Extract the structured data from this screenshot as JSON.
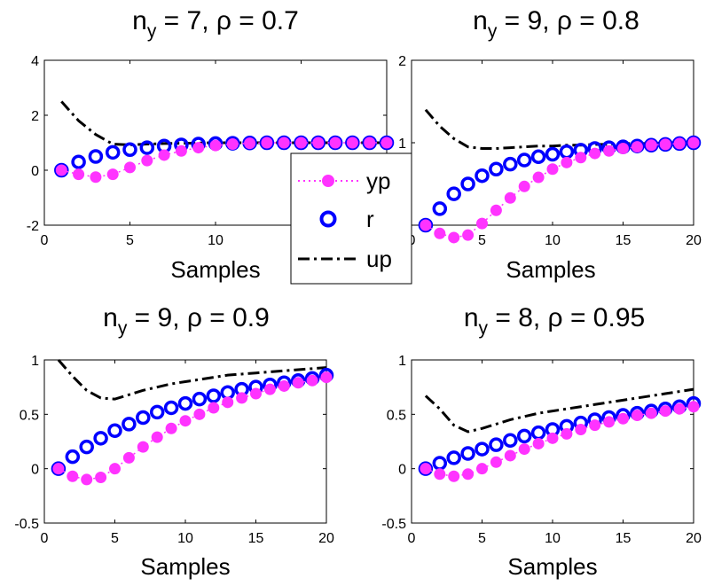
{
  "chart_data": [
    {
      "type": "line",
      "title": {
        "symbol": "n",
        "subscript": "y",
        "rest": " = 7, ρ = 0.7"
      },
      "xlabel": "Samples",
      "xlim": [
        0,
        20
      ],
      "ylim": [
        -2,
        4
      ],
      "xticks": [
        "0",
        "5",
        "10",
        "15",
        "20"
      ],
      "yticks": [
        "-2",
        "0",
        "2",
        "4"
      ],
      "x": [
        1,
        2,
        3,
        4,
        5,
        6,
        7,
        8,
        9,
        10,
        11,
        12,
        13,
        14,
        15,
        16,
        17,
        18,
        19,
        20
      ],
      "series": [
        {
          "name": "yp",
          "values": [
            0,
            -0.15,
            -0.25,
            -0.15,
            0.1,
            0.35,
            0.55,
            0.7,
            0.82,
            0.9,
            0.95,
            0.98,
            1.0,
            1.0,
            1.0,
            1.0,
            1.0,
            1.0,
            1.0,
            1.0
          ]
        },
        {
          "name": "r",
          "values": [
            0,
            0.3,
            0.5,
            0.65,
            0.75,
            0.82,
            0.88,
            0.92,
            0.95,
            0.97,
            0.98,
            0.99,
            1.0,
            1.0,
            1.0,
            1.0,
            1.0,
            1.0,
            1.0,
            1.0
          ]
        },
        {
          "name": "up",
          "values": [
            2.5,
            1.8,
            1.3,
            0.95,
            0.92,
            0.95,
            0.97,
            0.98,
            0.99,
            1.0,
            1.0,
            1.0,
            1.0,
            1.0,
            1.0,
            1.0,
            1.0,
            1.0,
            1.0,
            1.0
          ]
        }
      ]
    },
    {
      "type": "line",
      "title": {
        "symbol": "n",
        "subscript": "y",
        "rest": " = 9, ρ = 0.8"
      },
      "xlabel": "Samples",
      "xlim": [
        0,
        20
      ],
      "ylim": [
        0,
        2
      ],
      "xticks": [
        "0",
        "5",
        "10",
        "15",
        "20"
      ],
      "yticks": [
        "0",
        "1",
        "2"
      ],
      "x": [
        1,
        2,
        3,
        4,
        5,
        6,
        7,
        8,
        9,
        10,
        11,
        12,
        13,
        14,
        15,
        16,
        17,
        18,
        19,
        20
      ],
      "series": [
        {
          "name": "yp",
          "values": [
            0,
            -0.1,
            -0.15,
            -0.12,
            0.02,
            0.18,
            0.33,
            0.47,
            0.58,
            0.68,
            0.76,
            0.82,
            0.87,
            0.9,
            0.93,
            0.95,
            0.97,
            0.98,
            0.99,
            1.0
          ]
        },
        {
          "name": "r",
          "values": [
            0,
            0.2,
            0.38,
            0.5,
            0.6,
            0.68,
            0.74,
            0.79,
            0.83,
            0.86,
            0.89,
            0.91,
            0.93,
            0.94,
            0.95,
            0.96,
            0.97,
            0.98,
            0.99,
            1.0
          ]
        },
        {
          "name": "up",
          "values": [
            1.4,
            1.2,
            1.05,
            0.95,
            0.93,
            0.93,
            0.94,
            0.95,
            0.96,
            0.96,
            0.97,
            0.97,
            0.98,
            0.98,
            0.99,
            0.99,
            0.99,
            1.0,
            1.0,
            1.0
          ]
        }
      ]
    },
    {
      "type": "line",
      "title": {
        "symbol": "n",
        "subscript": "y",
        "rest": " = 9, ρ = 0.9"
      },
      "xlabel": "Samples",
      "xlim": [
        0,
        20
      ],
      "ylim": [
        -0.5,
        1
      ],
      "xticks": [
        "0",
        "5",
        "10",
        "15",
        "20"
      ],
      "yticks": [
        "-0.5",
        "0",
        "0.5",
        "1"
      ],
      "x": [
        1,
        2,
        3,
        4,
        5,
        6,
        7,
        8,
        9,
        10,
        11,
        12,
        13,
        14,
        15,
        16,
        17,
        18,
        19,
        20
      ],
      "series": [
        {
          "name": "yp",
          "values": [
            0,
            -0.07,
            -0.1,
            -0.08,
            0.0,
            0.1,
            0.2,
            0.29,
            0.37,
            0.44,
            0.5,
            0.56,
            0.61,
            0.65,
            0.69,
            0.73,
            0.76,
            0.79,
            0.81,
            0.84
          ]
        },
        {
          "name": "r",
          "values": [
            0,
            0.11,
            0.2,
            0.28,
            0.35,
            0.41,
            0.47,
            0.52,
            0.56,
            0.6,
            0.64,
            0.67,
            0.7,
            0.73,
            0.75,
            0.77,
            0.79,
            0.81,
            0.83,
            0.86
          ]
        },
        {
          "name": "up",
          "values": [
            1.0,
            0.85,
            0.72,
            0.65,
            0.64,
            0.68,
            0.72,
            0.75,
            0.78,
            0.8,
            0.82,
            0.84,
            0.86,
            0.87,
            0.88,
            0.89,
            0.9,
            0.91,
            0.92,
            0.93
          ]
        }
      ]
    },
    {
      "type": "line",
      "title": {
        "symbol": "n",
        "subscript": "y",
        "rest": " = 8, ρ = 0.95"
      },
      "xlabel": "Samples",
      "xlim": [
        0,
        20
      ],
      "ylim": [
        -0.5,
        1
      ],
      "xticks": [
        "0",
        "5",
        "10",
        "15",
        "20"
      ],
      "yticks": [
        "-0.5",
        "0",
        "0.5",
        "1"
      ],
      "x": [
        1,
        2,
        3,
        4,
        5,
        6,
        7,
        8,
        9,
        10,
        11,
        12,
        13,
        14,
        15,
        16,
        17,
        18,
        19,
        20
      ],
      "series": [
        {
          "name": "yp",
          "values": [
            0,
            -0.05,
            -0.07,
            -0.05,
            0.0,
            0.06,
            0.12,
            0.18,
            0.23,
            0.28,
            0.32,
            0.36,
            0.4,
            0.43,
            0.46,
            0.49,
            0.51,
            0.53,
            0.55,
            0.57
          ]
        },
        {
          "name": "r",
          "values": [
            0,
            0.05,
            0.1,
            0.14,
            0.18,
            0.22,
            0.26,
            0.3,
            0.33,
            0.36,
            0.39,
            0.42,
            0.45,
            0.47,
            0.49,
            0.51,
            0.53,
            0.55,
            0.57,
            0.6
          ]
        },
        {
          "name": "up",
          "values": [
            0.67,
            0.55,
            0.4,
            0.34,
            0.37,
            0.41,
            0.45,
            0.48,
            0.51,
            0.53,
            0.55,
            0.57,
            0.59,
            0.61,
            0.63,
            0.65,
            0.67,
            0.69,
            0.71,
            0.73
          ]
        }
      ]
    }
  ],
  "legend": {
    "entries": [
      {
        "label": "yp",
        "color": "#ff33ff",
        "marker": "filled-circle",
        "line": "dotted"
      },
      {
        "label": "r",
        "color": "#0000ff",
        "marker": "open-circle",
        "line": "none"
      },
      {
        "label": "up",
        "color": "#000000",
        "marker": "none",
        "line": "dash-dot"
      }
    ],
    "position": "center"
  },
  "colors": {
    "yp": "#ff33ff",
    "r": "#0000ff",
    "up": "#000000"
  }
}
